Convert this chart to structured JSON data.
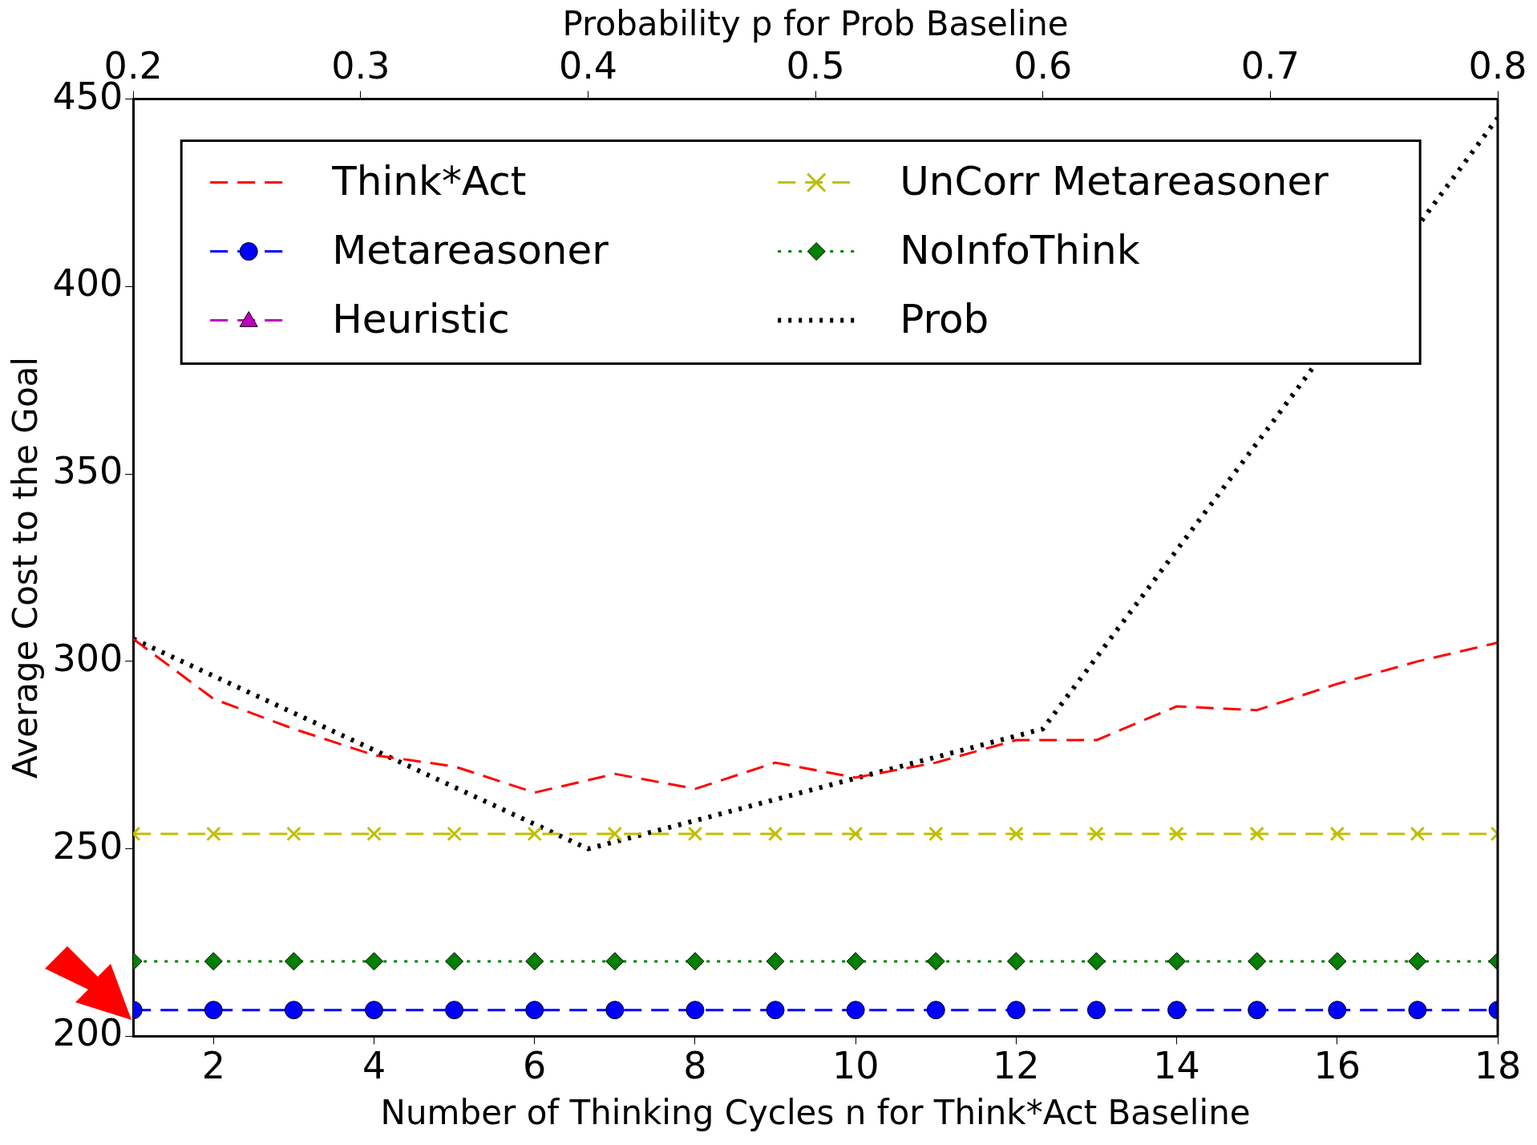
{
  "chart_data": {
    "type": "line",
    "xlabel": "Number of Thinking Cycles n for Think*Act Baseline",
    "x2label": "Probability p for Prob Baseline",
    "ylabel": "Average Cost to the Goal",
    "xlim": [
      1,
      18
    ],
    "xticks": [
      2,
      4,
      6,
      8,
      10,
      12,
      14,
      16,
      18
    ],
    "x2lim": [
      0.2,
      0.8
    ],
    "x2ticks": [
      0.2,
      0.3,
      0.4,
      0.5,
      0.6,
      0.7,
      0.8
    ],
    "ylim": [
      200,
      450
    ],
    "yticks": [
      200,
      250,
      300,
      350,
      400,
      450
    ],
    "grid": false,
    "legend": "top",
    "series": [
      {
        "name": "Think*Act",
        "color": "#ff0000",
        "marker": "none",
        "line_style": "dashed",
        "x": [
          1,
          2,
          3,
          4,
          5,
          6,
          7,
          8,
          9,
          10,
          11,
          12,
          13,
          14,
          15,
          16,
          17,
          18
        ],
        "values": [
          306,
          290,
          282,
          275,
          272,
          265,
          270,
          266,
          273,
          269,
          273,
          279,
          279,
          288,
          287,
          294,
          300,
          305
        ]
      },
      {
        "name": "Metareasoner",
        "color": "#0000ff",
        "marker": "circle",
        "line_style": "dashed",
        "x": [
          1,
          2,
          3,
          4,
          5,
          6,
          7,
          8,
          9,
          10,
          11,
          12,
          13,
          14,
          15,
          16,
          17,
          18
        ],
        "values": [
          207,
          207,
          207,
          207,
          207,
          207,
          207,
          207,
          207,
          207,
          207,
          207,
          207,
          207,
          207,
          207,
          207,
          207
        ]
      },
      {
        "name": "Heuristic",
        "color": "#bf00bf",
        "marker": "triangle",
        "line_style": "dashed",
        "values": [
          null,
          null,
          null,
          null,
          null,
          null,
          null,
          null,
          null,
          null,
          null,
          null,
          null,
          null,
          null,
          null,
          null,
          null
        ]
      },
      {
        "name": "UnCorr Metareasoner",
        "color": "#bfbf00",
        "marker": "cross",
        "line_style": "dashed",
        "x": [
          1,
          2,
          3,
          4,
          5,
          6,
          7,
          8,
          9,
          10,
          11,
          12,
          13,
          14,
          15,
          16,
          17,
          18
        ],
        "values": [
          254,
          254,
          254,
          254,
          254,
          254,
          254,
          254,
          254,
          254,
          254,
          254,
          254,
          254,
          254,
          254,
          254,
          254
        ]
      },
      {
        "name": "NoInfoThink",
        "color": "#007f00",
        "marker": "diamond",
        "line_style": "dotted",
        "x": [
          1,
          2,
          3,
          4,
          5,
          6,
          7,
          8,
          9,
          10,
          11,
          12,
          13,
          14,
          15,
          16,
          17,
          18
        ],
        "values": [
          220,
          220,
          220,
          220,
          220,
          220,
          220,
          220,
          220,
          220,
          220,
          220,
          220,
          220,
          220,
          220,
          220,
          220
        ]
      },
      {
        "name": "Prob",
        "color": "#000000",
        "marker": "none",
        "line_style": "dotted",
        "axis": "x2",
        "x": [
          0.2,
          0.3,
          0.4,
          0.5,
          0.6,
          0.7,
          0.8
        ],
        "values": [
          306,
          278,
          250,
          266,
          282,
          363,
          445
        ]
      }
    ]
  }
}
